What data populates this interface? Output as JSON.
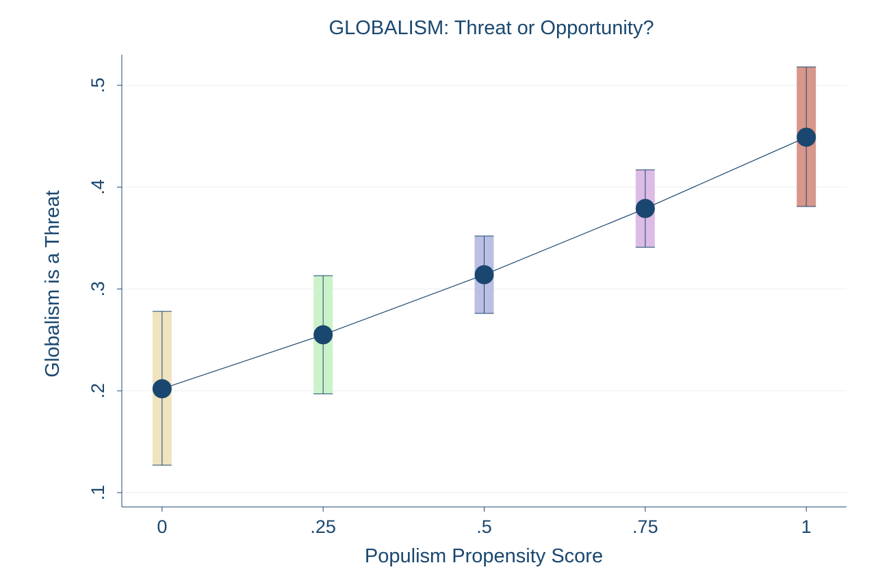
{
  "chart_data": {
    "type": "scatter",
    "title": "GLOBALISM: Threat or Opportunity?",
    "xlabel": "Populism Propensity Score",
    "ylabel": "Globalism is a Threat",
    "x_ticks": [
      {
        "value": 0,
        "label": "0"
      },
      {
        "value": 0.25,
        "label": ".25"
      },
      {
        "value": 0.5,
        "label": ".5"
      },
      {
        "value": 0.75,
        "label": ".75"
      },
      {
        "value": 1,
        "label": "1"
      }
    ],
    "y_ticks": [
      {
        "value": 0.1,
        "label": ".1"
      },
      {
        "value": 0.2,
        "label": ".2"
      },
      {
        "value": 0.3,
        "label": ".3"
      },
      {
        "value": 0.4,
        "label": ".4"
      },
      {
        "value": 0.5,
        "label": ".5"
      }
    ],
    "xlim": [
      -0.0625,
      1.0625
    ],
    "ylim": [
      0.086,
      0.53
    ],
    "grid": true,
    "legend": "none",
    "connecting_line": true,
    "points": [
      {
        "x": 0,
        "y": 0.202,
        "ci_low": 0.127,
        "ci_high": 0.278,
        "color": "#f0e3c0"
      },
      {
        "x": 0.25,
        "y": 0.255,
        "ci_low": 0.197,
        "ci_high": 0.313,
        "color": "#ccf2c9"
      },
      {
        "x": 0.5,
        "y": 0.314,
        "ci_low": 0.276,
        "ci_high": 0.352,
        "color": "#bbbfe3"
      },
      {
        "x": 0.75,
        "y": 0.379,
        "ci_low": 0.341,
        "ci_high": 0.417,
        "color": "#dcbce5"
      },
      {
        "x": 1,
        "y": 0.449,
        "ci_low": 0.381,
        "ci_high": 0.518,
        "color": "#d7978a"
      }
    ],
    "colors": {
      "marker": "#1a476f",
      "text": "#1a476f",
      "grid": "#eef1f3",
      "axis": "#1a476f"
    }
  }
}
